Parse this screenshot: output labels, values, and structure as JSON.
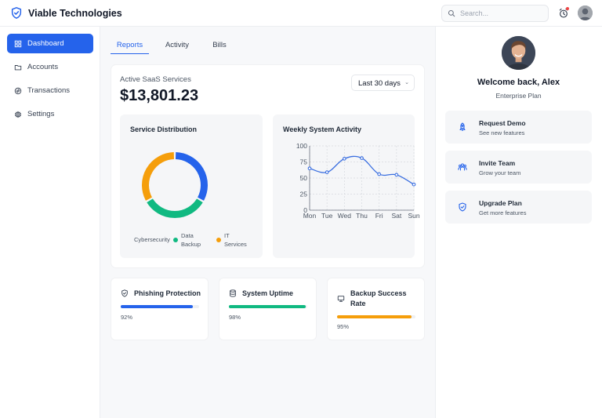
{
  "header": {
    "brand": "Viable Technologies",
    "search_placeholder": "Search..."
  },
  "sidebar": {
    "items": [
      {
        "label": "Dashboard",
        "icon": "grid-icon",
        "active": true
      },
      {
        "label": "Accounts",
        "icon": "folder-icon"
      },
      {
        "label": "Transactions",
        "icon": "transactions-icon"
      },
      {
        "label": "Settings",
        "icon": "gear-icon"
      }
    ]
  },
  "tabs": [
    {
      "label": "Reports",
      "active": true
    },
    {
      "label": "Activity"
    },
    {
      "label": "Bills"
    }
  ],
  "summary": {
    "label": "Active SaaS Services",
    "amount": "$13,801.23",
    "range": "Last 30 days"
  },
  "distribution": {
    "title": "Service Distribution",
    "legend": [
      {
        "label": "Cybersecurity",
        "color": "#2563eb"
      },
      {
        "label": "Data Backup",
        "color": "#10b981"
      },
      {
        "label": "IT Services",
        "color": "#f59e0b"
      }
    ]
  },
  "activity": {
    "title": "Weekly System Activity"
  },
  "chart_data": [
    {
      "type": "pie",
      "title": "Service Distribution",
      "categories": [
        "Cybersecurity",
        "Data Backup",
        "IT Services"
      ],
      "values": [
        33.3,
        33.3,
        33.3
      ],
      "colors": [
        "#2563eb",
        "#10b981",
        "#f59e0b"
      ],
      "donut": true
    },
    {
      "type": "line",
      "title": "Weekly System Activity",
      "categories": [
        "Mon",
        "Tue",
        "Wed",
        "Thu",
        "Fri",
        "Sat",
        "Sun"
      ],
      "values": [
        65,
        59,
        80,
        81,
        56,
        55,
        40
      ],
      "ylim": [
        0,
        100
      ],
      "yticks": [
        0,
        25,
        50,
        75,
        100
      ],
      "grid": true,
      "color": "#3b6fe0"
    }
  ],
  "metrics": [
    {
      "title": "Phishing Protection",
      "percent_label": "92%",
      "value": 92,
      "color": "#2563eb",
      "icon": "shield-check-icon"
    },
    {
      "title": "System Uptime",
      "percent_label": "98%",
      "value": 98,
      "color": "#10b981",
      "icon": "database-icon"
    },
    {
      "title": "Backup Success Rate",
      "percent_label": "95%",
      "value": 95,
      "color": "#f59e0b",
      "icon": "monitor-icon"
    }
  ],
  "profile": {
    "welcome": "Welcome back, Alex",
    "plan": "Enterprise Plan"
  },
  "actions": [
    {
      "title": "Request Demo",
      "subtitle": "See new features",
      "icon": "rocket-icon"
    },
    {
      "title": "Invite Team",
      "subtitle": "Grow your team",
      "icon": "users-icon"
    },
    {
      "title": "Upgrade Plan",
      "subtitle": "Get more features",
      "icon": "shield-check-icon"
    }
  ]
}
